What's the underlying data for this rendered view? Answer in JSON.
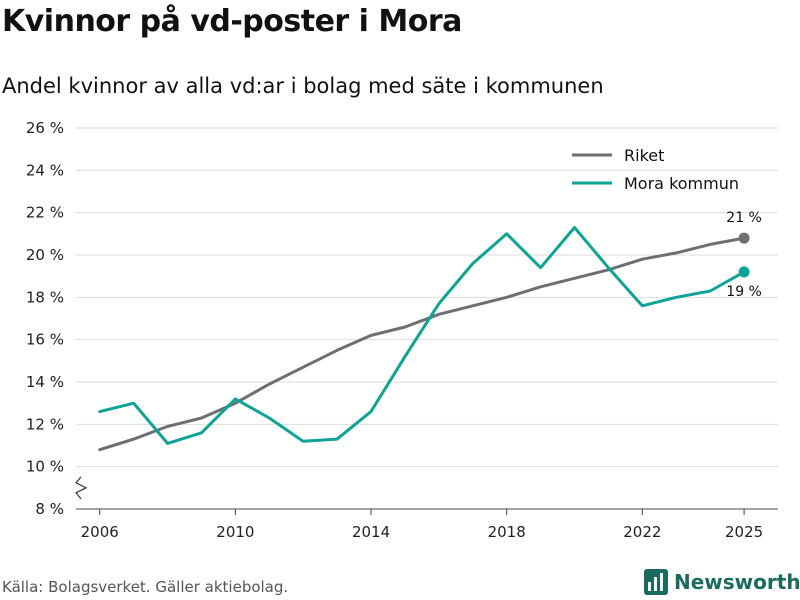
{
  "title": "Kvinnor på vd-poster i Mora",
  "subtitle": "Andel kvinnor av alla vd:ar i bolag med säte i kommunen",
  "source": "Källa: Bolagsverket. Gäller aktiebolag.",
  "brand": "Newsworthy",
  "colors": {
    "riket": "#6e6e73",
    "mora": "#0ea394",
    "grid": "#dddddd",
    "brand": "#1a6b5e"
  },
  "chart_data": {
    "type": "line",
    "title": "Kvinnor på vd-poster i Mora",
    "xlabel": "",
    "ylabel": "",
    "ylim": [
      8,
      26
    ],
    "axis_break": true,
    "y_ticks": [
      8,
      10,
      12,
      14,
      16,
      18,
      20,
      22,
      24,
      26
    ],
    "y_tick_labels": [
      "8 %",
      "10 %",
      "12 %",
      "14 %",
      "16 %",
      "18 %",
      "20 %",
      "22 %",
      "24 %",
      "26 %"
    ],
    "x_range": [
      2005.3,
      2026.0
    ],
    "x_ticks": [
      2006,
      2010,
      2014,
      2018,
      2022,
      2025
    ],
    "x_tick_labels": [
      "2006",
      "2010",
      "2014",
      "2018",
      "2022",
      "2025"
    ],
    "legend_position": "top-right",
    "series": [
      {
        "name": "Riket",
        "color": "#6e6e73",
        "x": [
          2006,
          2007,
          2008,
          2009,
          2010,
          2011,
          2012,
          2013,
          2014,
          2015,
          2016,
          2017,
          2018,
          2019,
          2020,
          2021,
          2022,
          2023,
          2024,
          2025
        ],
        "values": [
          10.8,
          11.3,
          11.9,
          12.3,
          13.0,
          13.9,
          14.7,
          15.5,
          16.2,
          16.6,
          17.2,
          17.6,
          18.0,
          18.5,
          18.9,
          19.3,
          19.8,
          20.1,
          20.5,
          20.8
        ],
        "end_label": "21 %"
      },
      {
        "name": "Mora kommun",
        "color": "#0ea394",
        "x": [
          2006,
          2007,
          2008,
          2009,
          2010,
          2011,
          2012,
          2013,
          2014,
          2015,
          2016,
          2017,
          2018,
          2019,
          2020,
          2021,
          2022,
          2023,
          2024,
          2025
        ],
        "values": [
          12.6,
          13.0,
          11.1,
          11.6,
          13.2,
          12.3,
          11.2,
          11.3,
          12.6,
          15.2,
          17.7,
          19.6,
          21.0,
          19.4,
          21.3,
          19.4,
          17.6,
          18.0,
          18.3,
          19.2
        ],
        "end_label": "19 %"
      }
    ]
  }
}
